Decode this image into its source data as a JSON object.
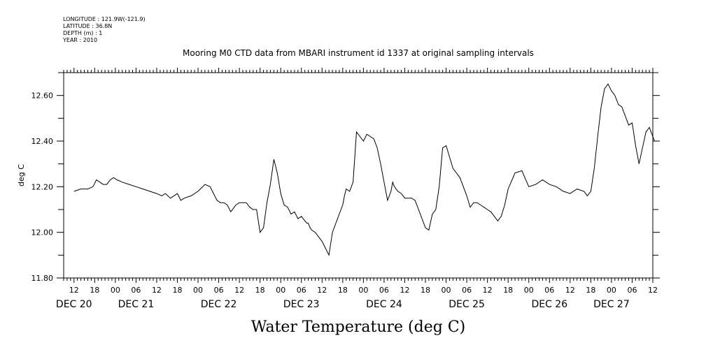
{
  "chart_data": {
    "type": "line",
    "meta_lines": [
      "LONGITUDE : 121.9W(-121.9)",
      "LATITUDE : 36.8N",
      "DEPTH (m) : 1",
      "YEAR : 2010"
    ],
    "title": "Mooring M0 CTD data from MBARI instrument id 1337 at original sampling intervals",
    "xlabel": "Water Temperature (deg C)",
    "ylabel": "deg C",
    "ylim": [
      11.8,
      12.7
    ],
    "y_ticks": [
      11.8,
      12.0,
      12.2,
      12.4,
      12.6
    ],
    "y_tick_labels": [
      "11.80",
      "12.00",
      "12.20",
      "12.40",
      "12.60"
    ],
    "x_unit": "hours since DEC 20 00:00",
    "xlim": [
      9,
      180
    ],
    "hour_ticks": [
      {
        "x": 12,
        "label": "12"
      },
      {
        "x": 18,
        "label": "18"
      },
      {
        "x": 24,
        "label": "00"
      },
      {
        "x": 30,
        "label": "06"
      },
      {
        "x": 36,
        "label": "12"
      },
      {
        "x": 42,
        "label": "18"
      },
      {
        "x": 48,
        "label": "00"
      },
      {
        "x": 54,
        "label": "06"
      },
      {
        "x": 60,
        "label": "12"
      },
      {
        "x": 66,
        "label": "18"
      },
      {
        "x": 72,
        "label": "00"
      },
      {
        "x": 78,
        "label": "06"
      },
      {
        "x": 84,
        "label": "12"
      },
      {
        "x": 90,
        "label": "18"
      },
      {
        "x": 96,
        "label": "00"
      },
      {
        "x": 102,
        "label": "06"
      },
      {
        "x": 108,
        "label": "12"
      },
      {
        "x": 114,
        "label": "18"
      },
      {
        "x": 120,
        "label": "00"
      },
      {
        "x": 126,
        "label": "06"
      },
      {
        "x": 132,
        "label": "12"
      },
      {
        "x": 138,
        "label": "18"
      },
      {
        "x": 144,
        "label": "00"
      },
      {
        "x": 150,
        "label": "06"
      },
      {
        "x": 156,
        "label": "12"
      },
      {
        "x": 162,
        "label": "18"
      },
      {
        "x": 168,
        "label": "00"
      },
      {
        "x": 174,
        "label": "06"
      },
      {
        "x": 180,
        "label": "12"
      }
    ],
    "day_labels": [
      {
        "x": 12,
        "label": "DEC 20"
      },
      {
        "x": 30,
        "label": "DEC 21"
      },
      {
        "x": 54,
        "label": "DEC 22"
      },
      {
        "x": 78,
        "label": "DEC 23"
      },
      {
        "x": 102,
        "label": "DEC 24"
      },
      {
        "x": 126,
        "label": "DEC 25"
      },
      {
        "x": 150,
        "label": "DEC 26"
      },
      {
        "x": 168,
        "label": "DEC 27"
      }
    ],
    "series": [
      {
        "color": "#000000",
        "x": [
          12,
          14,
          16,
          17.5,
          18.5,
          19.5,
          20.5,
          21.5,
          22.5,
          23.5,
          24.5,
          26,
          28,
          30,
          32,
          34,
          36,
          37.5,
          38.5,
          40,
          41,
          42,
          43,
          44,
          46,
          48,
          50,
          51.5,
          52.5,
          53.5,
          54.5,
          55.5,
          56.5,
          57.5,
          59,
          60,
          61,
          62,
          62.5,
          63,
          64,
          65,
          66,
          67,
          68,
          69,
          70,
          71,
          72,
          73,
          74,
          75,
          76,
          77,
          78,
          79,
          79.6,
          80,
          80.5,
          81,
          82,
          83,
          84,
          85,
          86,
          87,
          88,
          89,
          90,
          90.5,
          91,
          92,
          93,
          94,
          95,
          96,
          97,
          98,
          99,
          100,
          101,
          102,
          103,
          104,
          104.5,
          105,
          106,
          107,
          108,
          109,
          110,
          111,
          112,
          113,
          114,
          115,
          116,
          117,
          118,
          119,
          120,
          121,
          122,
          123,
          124,
          125,
          126,
          127,
          128,
          129,
          130,
          131,
          132,
          133,
          134,
          135,
          136,
          137,
          138,
          140,
          142,
          144,
          146,
          148,
          150,
          152,
          154,
          156,
          158,
          160,
          161,
          162,
          163,
          164,
          165,
          166,
          167,
          168,
          169,
          170,
          171,
          172,
          173,
          174,
          175,
          176,
          177,
          178,
          179,
          180,
          180.5
        ],
        "y": [
          12.18,
          12.19,
          12.19,
          12.2,
          12.23,
          12.22,
          12.21,
          12.21,
          12.23,
          12.24,
          12.23,
          12.22,
          12.21,
          12.2,
          12.19,
          12.18,
          12.17,
          12.16,
          12.17,
          12.15,
          12.16,
          12.17,
          12.14,
          12.15,
          12.16,
          12.18,
          12.21,
          12.2,
          12.17,
          12.14,
          12.13,
          12.13,
          12.12,
          12.09,
          12.12,
          12.13,
          12.13,
          12.13,
          12.12,
          12.11,
          12.1,
          12.1,
          12.0,
          12.02,
          12.13,
          12.21,
          12.32,
          12.26,
          12.17,
          12.12,
          12.11,
          12.08,
          12.09,
          12.06,
          12.07,
          12.05,
          12.04,
          12.04,
          12.02,
          12.01,
          12.0,
          11.98,
          11.96,
          11.93,
          11.9,
          12.0,
          12.04,
          12.08,
          12.12,
          12.16,
          12.19,
          12.18,
          12.22,
          12.44,
          12.42,
          12.4,
          12.43,
          12.42,
          12.41,
          12.37,
          12.3,
          12.22,
          12.14,
          12.18,
          12.22,
          12.2,
          12.18,
          12.17,
          12.15,
          12.15,
          12.15,
          12.14,
          12.1,
          12.06,
          12.02,
          12.01,
          12.08,
          12.1,
          12.2,
          12.37,
          12.38,
          12.33,
          12.28,
          12.26,
          12.24,
          12.2,
          12.16,
          12.11,
          12.13,
          12.13,
          12.12,
          12.11,
          12.1,
          12.09,
          12.07,
          12.05,
          12.07,
          12.12,
          12.19,
          12.26,
          12.27,
          12.2,
          12.21,
          12.23,
          12.21,
          12.2,
          12.18,
          12.17,
          12.19,
          12.18,
          12.16,
          12.18,
          12.28,
          12.42,
          12.55,
          12.63,
          12.65,
          12.62,
          12.6,
          12.56,
          12.55,
          12.51,
          12.47,
          12.48,
          12.38,
          12.3,
          12.37,
          12.44,
          12.46,
          12.42,
          12.4
        ]
      }
    ],
    "grid": false
  }
}
